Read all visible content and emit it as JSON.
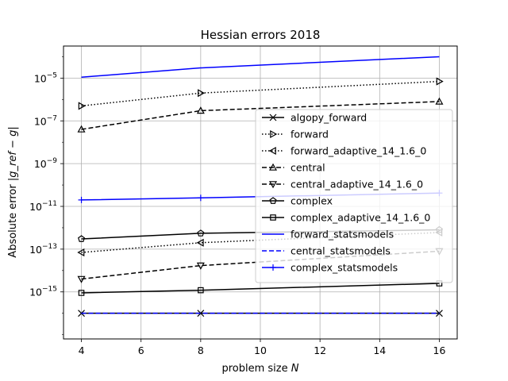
{
  "chart_data": {
    "type": "line",
    "title": "Hessian errors 2018",
    "xlabel": "problem size",
    "xlabel_var": "N",
    "ylabel": "Absolute error",
    "ylabel_expr": "|g_ref − g|",
    "yscale": "log",
    "xlim": [
      3.4,
      16.6
    ],
    "ylim_exp": [
      -17.2,
      -3.5
    ],
    "x_ticks": [
      4,
      6,
      8,
      10,
      12,
      14,
      16
    ],
    "y_ticks": [
      {
        "exp": -15,
        "label": "10",
        "sup": "−15"
      },
      {
        "exp": -13,
        "label": "10",
        "sup": "−13"
      },
      {
        "exp": -11,
        "label": "10",
        "sup": "−11"
      },
      {
        "exp": -9,
        "label": "10",
        "sup": "−9"
      },
      {
        "exp": -7,
        "label": "10",
        "sup": "−7"
      },
      {
        "exp": -5,
        "label": "10",
        "sup": "−5"
      }
    ],
    "grid": true,
    "legend_position": "center-right",
    "x": [
      4,
      8,
      16
    ],
    "series": [
      {
        "name": "algopy_forward",
        "color": "#000000",
        "dash": "solid",
        "marker": "x",
        "values": [
          1e-16,
          1e-16,
          1e-16
        ]
      },
      {
        "name": "forward",
        "color": "#000000",
        "dash": "dotted",
        "marker": "triangle-right",
        "values": [
          5e-07,
          2e-06,
          7e-06
        ]
      },
      {
        "name": "forward_adaptive_14_1.6_0",
        "color": "#000000",
        "dash": "dotted",
        "marker": "triangle-left",
        "values": [
          7e-14,
          2e-13,
          6e-13
        ]
      },
      {
        "name": "central",
        "color": "#000000",
        "dash": "dashed",
        "marker": "triangle-up",
        "values": [
          4e-08,
          3e-07,
          8e-07
        ]
      },
      {
        "name": "central_adaptive_14_1.6_0",
        "color": "#000000",
        "dash": "dashed",
        "marker": "triangle-down",
        "values": [
          4e-15,
          1.7e-14,
          8e-14
        ]
      },
      {
        "name": "complex",
        "color": "#000000",
        "dash": "solid",
        "marker": "pentagon",
        "values": [
          3e-13,
          5.5e-13,
          8e-13
        ]
      },
      {
        "name": "complex_adaptive_14_1.6_0",
        "color": "#000000",
        "dash": "solid",
        "marker": "square",
        "values": [
          9e-16,
          1.2e-15,
          2.5e-15
        ]
      },
      {
        "name": "forward_statsmodels",
        "color": "#0000ff",
        "dash": "solid",
        "marker": "none",
        "values": [
          1.1e-05,
          3e-05,
          0.0001
        ]
      },
      {
        "name": "central_statsmodels",
        "color": "#0000ff",
        "dash": "dashed",
        "marker": "none",
        "values": [
          1e-16,
          1e-16,
          1e-16
        ]
      },
      {
        "name": "complex_statsmodels",
        "color": "#0000ff",
        "dash": "solid",
        "marker": "plus",
        "values": [
          2e-11,
          2.5e-11,
          4.2e-11
        ]
      }
    ]
  }
}
